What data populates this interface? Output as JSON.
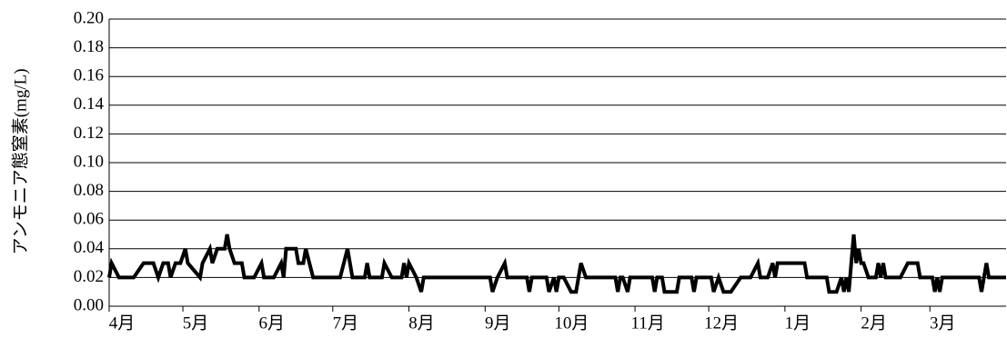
{
  "chart_data": {
    "type": "line",
    "y_label": "アンモニア態窒素(mg/L)",
    "x": [
      0,
      1,
      4,
      10,
      14,
      18,
      20,
      22,
      24,
      25,
      27,
      29,
      31,
      32,
      37,
      38,
      41,
      42,
      44,
      47,
      48,
      49,
      51,
      54,
      55,
      59,
      62,
      63,
      67,
      70,
      71,
      72,
      76,
      77,
      79,
      80,
      83,
      94,
      97,
      99,
      104,
      105,
      106,
      111,
      112,
      115,
      119,
      120,
      121,
      122,
      125,
      127,
      128,
      155,
      156,
      158,
      161,
      162,
      170,
      171,
      172,
      178,
      179,
      181,
      182,
      183,
      185,
      188,
      190,
      192,
      194,
      206,
      207,
      208,
      209,
      211,
      212,
      221,
      222,
      223,
      225,
      226,
      231,
      232,
      237,
      238,
      239,
      245,
      246,
      248,
      250,
      253,
      257,
      261,
      264,
      265,
      268,
      270,
      271,
      272,
      283,
      284,
      292,
      293,
      296,
      298,
      299,
      300,
      301,
      302,
      303,
      304,
      305,
      306,
      307,
      309,
      312,
      313,
      314,
      315,
      316,
      322,
      325,
      329,
      330,
      335,
      336,
      337,
      338,
      339,
      354,
      355,
      357,
      358,
      365
    ],
    "values": [
      0.02,
      0.03,
      0.02,
      0.02,
      0.03,
      0.03,
      0.02,
      0.03,
      0.03,
      0.02,
      0.03,
      0.03,
      0.04,
      0.03,
      0.02,
      0.03,
      0.04,
      0.03,
      0.04,
      0.04,
      0.05,
      0.04,
      0.03,
      0.03,
      0.02,
      0.02,
      0.03,
      0.02,
      0.02,
      0.03,
      0.02,
      0.04,
      0.04,
      0.03,
      0.03,
      0.04,
      0.02,
      0.02,
      0.04,
      0.02,
      0.02,
      0.03,
      0.02,
      0.02,
      0.03,
      0.02,
      0.02,
      0.03,
      0.02,
      0.03,
      0.02,
      0.01,
      0.02,
      0.02,
      0.01,
      0.02,
      0.03,
      0.02,
      0.02,
      0.01,
      0.02,
      0.02,
      0.01,
      0.02,
      0.01,
      0.02,
      0.02,
      0.01,
      0.01,
      0.03,
      0.02,
      0.02,
      0.01,
      0.02,
      0.02,
      0.01,
      0.02,
      0.02,
      0.01,
      0.02,
      0.02,
      0.01,
      0.01,
      0.02,
      0.02,
      0.01,
      0.02,
      0.02,
      0.01,
      0.02,
      0.01,
      0.01,
      0.02,
      0.02,
      0.03,
      0.02,
      0.02,
      0.03,
      0.02,
      0.03,
      0.03,
      0.02,
      0.02,
      0.01,
      0.01,
      0.02,
      0.01,
      0.02,
      0.01,
      0.03,
      0.05,
      0.03,
      0.04,
      0.03,
      0.03,
      0.02,
      0.02,
      0.03,
      0.02,
      0.03,
      0.02,
      0.02,
      0.03,
      0.03,
      0.02,
      0.02,
      0.01,
      0.02,
      0.01,
      0.02,
      0.02,
      0.01,
      0.03,
      0.02,
      0.02
    ],
    "color": "#000000",
    "xlim": [
      0,
      365
    ],
    "xticks": [
      {
        "value": 0,
        "label": "4月"
      },
      {
        "value": 30,
        "label": "5月"
      },
      {
        "value": 61,
        "label": "6月"
      },
      {
        "value": 91,
        "label": "7月"
      },
      {
        "value": 122,
        "label": "8月"
      },
      {
        "value": 153,
        "label": "9月"
      },
      {
        "value": 183,
        "label": "10月"
      },
      {
        "value": 214,
        "label": "11月"
      },
      {
        "value": 244,
        "label": "12月"
      },
      {
        "value": 275,
        "label": "1月"
      },
      {
        "value": 306,
        "label": "2月"
      },
      {
        "value": 334,
        "label": "3月"
      }
    ],
    "ylim": [
      0,
      0.2
    ],
    "yticks": [
      {
        "value": 0,
        "label": "0.00"
      },
      {
        "value": 0.02,
        "label": "0.02"
      },
      {
        "value": 0.04,
        "label": "0.04"
      },
      {
        "value": 0.06,
        "label": "0.06"
      },
      {
        "value": 0.08,
        "label": "0.08"
      },
      {
        "value": 0.1,
        "label": "0.10"
      },
      {
        "value": 0.12,
        "label": "0.12"
      },
      {
        "value": 0.14,
        "label": "0.14"
      },
      {
        "value": 0.16,
        "label": "0.16"
      },
      {
        "value": 0.18,
        "label": "0.18"
      },
      {
        "value": 0.2,
        "label": "0.20"
      }
    ],
    "grid": true
  }
}
